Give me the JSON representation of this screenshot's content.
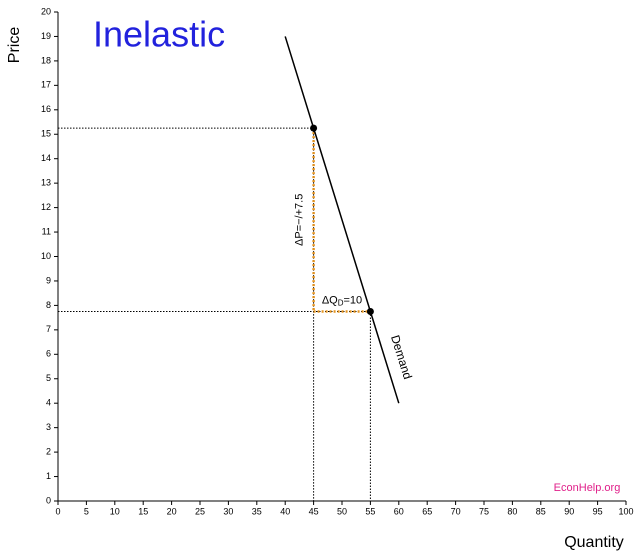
{
  "chart_data": {
    "type": "line",
    "title": "Inelastic",
    "x_label": "Quantity",
    "y_label": "Price",
    "xlim": [
      0,
      100
    ],
    "ylim": [
      0,
      20
    ],
    "xticks": [
      0,
      5,
      10,
      15,
      20,
      25,
      30,
      35,
      40,
      45,
      50,
      55,
      60,
      65,
      70,
      75,
      80,
      85,
      90,
      95,
      100
    ],
    "yticks": [
      0,
      1,
      2,
      3,
      4,
      5,
      6,
      7,
      8,
      9,
      10,
      11,
      12,
      13,
      14,
      15,
      16,
      17,
      18,
      19,
      20
    ],
    "series": [
      {
        "name": "Demand",
        "color": "#000000",
        "x": [
          40,
          45,
          55,
          60
        ],
        "y": [
          19,
          15.25,
          7.75,
          4
        ]
      }
    ],
    "points": {
      "x": [
        45,
        55
      ],
      "y": [
        15.25,
        7.75
      ]
    },
    "change_color": "#e69520",
    "annotations": {
      "price_change": "ΔP=−/+7.5",
      "quantity_change": {
        "text": "ΔQ",
        "subscript": "D",
        "suffix": "=10"
      },
      "source": "EconHelp.org"
    },
    "title_color": "#2222dd",
    "source_color": "#e0208a"
  }
}
